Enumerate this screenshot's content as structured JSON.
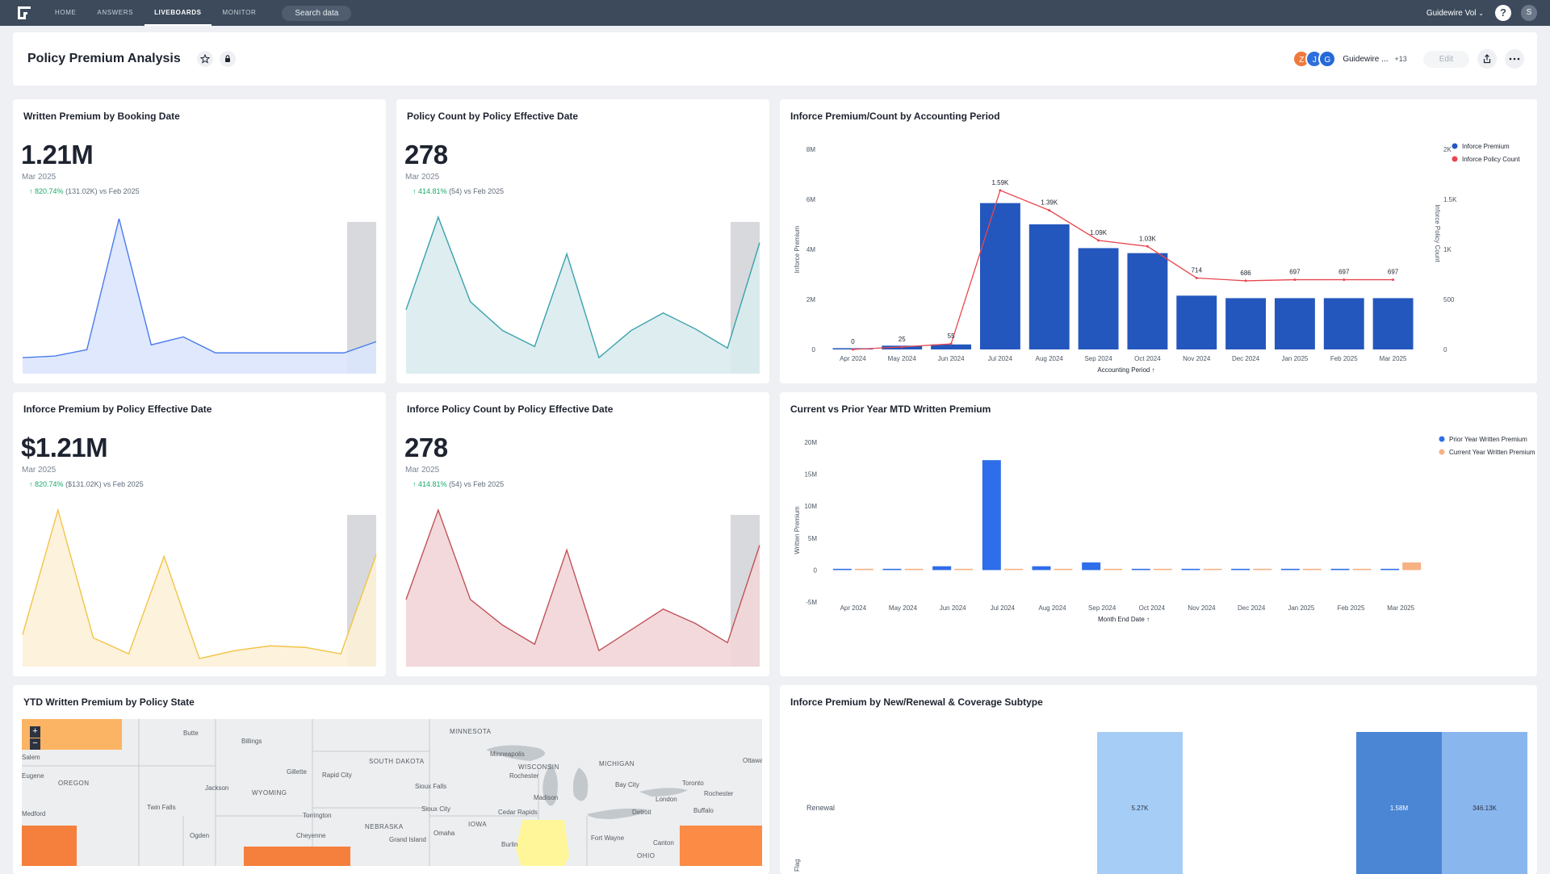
{
  "nav": {
    "items": [
      {
        "label": "HOME"
      },
      {
        "label": "ANSWERS"
      },
      {
        "label": "LIVEBOARDS"
      },
      {
        "label": "MONITOR"
      }
    ],
    "search_label": "Search data",
    "org_label": "Guidewire Vol",
    "help_label": "?",
    "user_initial": "S"
  },
  "header": {
    "title": "Policy Premium Analysis",
    "avatars": [
      {
        "initial": "Z",
        "color": "#f07a3c"
      },
      {
        "initial": "J",
        "color": "#2f6fdc"
      },
      {
        "initial": "G",
        "color": "#2568d8"
      }
    ],
    "share_name": "Guidewire ...",
    "share_more": "+13",
    "edit_label": "Edit"
  },
  "kpis": [
    {
      "title": "Written Premium by Booking Date",
      "value": "1.21M",
      "period": "Mar 2025",
      "pct": "820.74%",
      "delta": "(131.02K) vs Feb 2025",
      "stroke": "#4b7bec",
      "fill": "#dce6fd",
      "points": [
        0.1,
        0.11,
        0.15,
        0.97,
        0.18,
        0.23,
        0.13,
        0.13,
        0.13,
        0.13,
        0.13,
        0.2
      ],
      "highlight_last": true
    },
    {
      "title": "Policy Count by Policy Effective Date",
      "value": "278",
      "period": "Mar 2025",
      "pct": "414.81%",
      "delta": "(54) vs Feb 2025",
      "stroke": "#3aa2ab",
      "fill": "#d9ebee",
      "points": [
        0.4,
        0.98,
        0.45,
        0.27,
        0.17,
        0.75,
        0.1,
        0.27,
        0.38,
        0.28,
        0.16,
        0.82
      ],
      "highlight_last": true
    },
    {
      "title": "Inforce Premium by Policy Effective Date",
      "value": "$1.21M",
      "period": "Mar 2025",
      "pct": "820.74%",
      "delta": "($131.02K) vs Feb 2025",
      "stroke": "#f2c447",
      "fill": "#fdf1d7",
      "points": [
        0.2,
        0.98,
        0.18,
        0.08,
        0.69,
        0.05,
        0.1,
        0.13,
        0.12,
        0.08,
        0.7
      ],
      "highlight_last": true
    },
    {
      "title": "Inforce Policy Count by Policy Effective Date",
      "value": "278",
      "period": "Mar 2025",
      "pct": "414.81%",
      "delta": "(54) vs Feb 2025",
      "stroke": "#c0535b",
      "fill": "#f2d5d7",
      "points": [
        0.42,
        0.98,
        0.42,
        0.26,
        0.14,
        0.73,
        0.1,
        0.23,
        0.36,
        0.27,
        0.15,
        0.76
      ],
      "highlight_last": true
    }
  ],
  "chart_data": [
    {
      "type": "bar",
      "title": "Inforce Premium/Count by Accounting Period",
      "categories": [
        "Apr 2024",
        "May 2024",
        "Jun 2024",
        "Jul 2024",
        "Aug 2024",
        "Sep 2024",
        "Oct 2024",
        "Nov 2024",
        "Dec 2024",
        "Jan 2025",
        "Feb 2025",
        "Mar 2025"
      ],
      "series": [
        {
          "name": "Inforce Premium",
          "color": "#2457bd",
          "values": [
            0.05,
            0.15,
            0.2,
            5.85,
            5.0,
            4.05,
            3.85,
            2.15,
            2.05,
            2.05,
            2.05,
            2.05
          ]
        },
        {
          "name": "Inforce Policy Count",
          "color": "#e8474f",
          "values": [
            0,
            25,
            55,
            1590,
            1390,
            1090,
            1030,
            714,
            686,
            697,
            697,
            697
          ],
          "labels": [
            "0",
            "25",
            "55",
            "1.59K",
            "1.39K",
            "1.09K",
            "1.03K",
            "714",
            "686",
            "697",
            "697",
            "697"
          ]
        }
      ],
      "xlabel": "Accounting Period",
      "ylabel": "Inforce Premium",
      "y2label": "Inforce Policy Count",
      "ylim": [
        0,
        8
      ],
      "y2lim": [
        0,
        2000
      ],
      "yticks": [
        "0",
        "2M",
        "4M",
        "6M",
        "8M"
      ],
      "y2ticks": [
        "0",
        "500",
        "1K",
        "1.5K",
        "2K"
      ]
    },
    {
      "type": "bar",
      "title": "Current vs Prior Year MTD Written Premium",
      "categories": [
        "Apr 2024",
        "May 2024",
        "Jun 2024",
        "Jul 2024",
        "Aug 2024",
        "Sep 2024",
        "Oct 2024",
        "Nov 2024",
        "Dec 2024",
        "Jan 2025",
        "Feb 2025",
        "Mar 2025"
      ],
      "series": [
        {
          "name": "Prior Year Written Premium",
          "color": "#2f6eea",
          "values": [
            0.2,
            0.2,
            0.6,
            17.2,
            0.6,
            1.2,
            0.2,
            0.2,
            0.2,
            0.2,
            0.2,
            0.2
          ]
        },
        {
          "name": "Current Year Written Premium",
          "color": "#f6b285",
          "values": [
            0.2,
            0.2,
            0.2,
            0.2,
            0.2,
            0.2,
            0.2,
            0.2,
            0.2,
            0.2,
            0.2,
            1.2
          ]
        }
      ],
      "xlabel": "Month End Date",
      "ylabel": "Written Premium",
      "ylim": [
        -5,
        20
      ],
      "yticks": [
        "-5M",
        "0",
        "5M",
        "10M",
        "15M",
        "20M"
      ]
    }
  ],
  "map": {
    "title": "YTD Written Premium by Policy State",
    "zoom_in": "+",
    "zoom_out": "−",
    "labels": [
      "Butte",
      "Billings",
      "Salem",
      "Eugene",
      "OREGON",
      "Jackson",
      "WYOMING",
      "Gillette",
      "Rapid City",
      "SOUTH DAKOTA",
      "MINNESOTA",
      "Minneapolis",
      "Rochester",
      "WISCONSIN",
      "MICHIGAN",
      "Ottawa",
      "Medford",
      "Twin Falls",
      "Torrington",
      "Sioux Falls",
      "Sioux City",
      "Bay City",
      "Toronto",
      "Rochester",
      "Madison",
      "London",
      "Cheyenne",
      "Ogden",
      "NEBRASKA",
      "Grand Island",
      "Omaha",
      "IOWA",
      "Cedar Rapids",
      "Detroit",
      "Buffalo",
      "Burlin",
      "Fort Wayne",
      "Canton",
      "OHIO"
    ]
  },
  "coverage": {
    "title": "Inforce Premium by New/Renewal & Coverage Subtype",
    "row_label": "Renewal",
    "axis_label": "Flag",
    "bars": [
      {
        "label": "5.27K",
        "color": "#a6cdf6"
      },
      {
        "label": "1.58M",
        "color": "#4a86d4"
      },
      {
        "label": "346.13K",
        "color": "#8ab6ee"
      }
    ]
  }
}
